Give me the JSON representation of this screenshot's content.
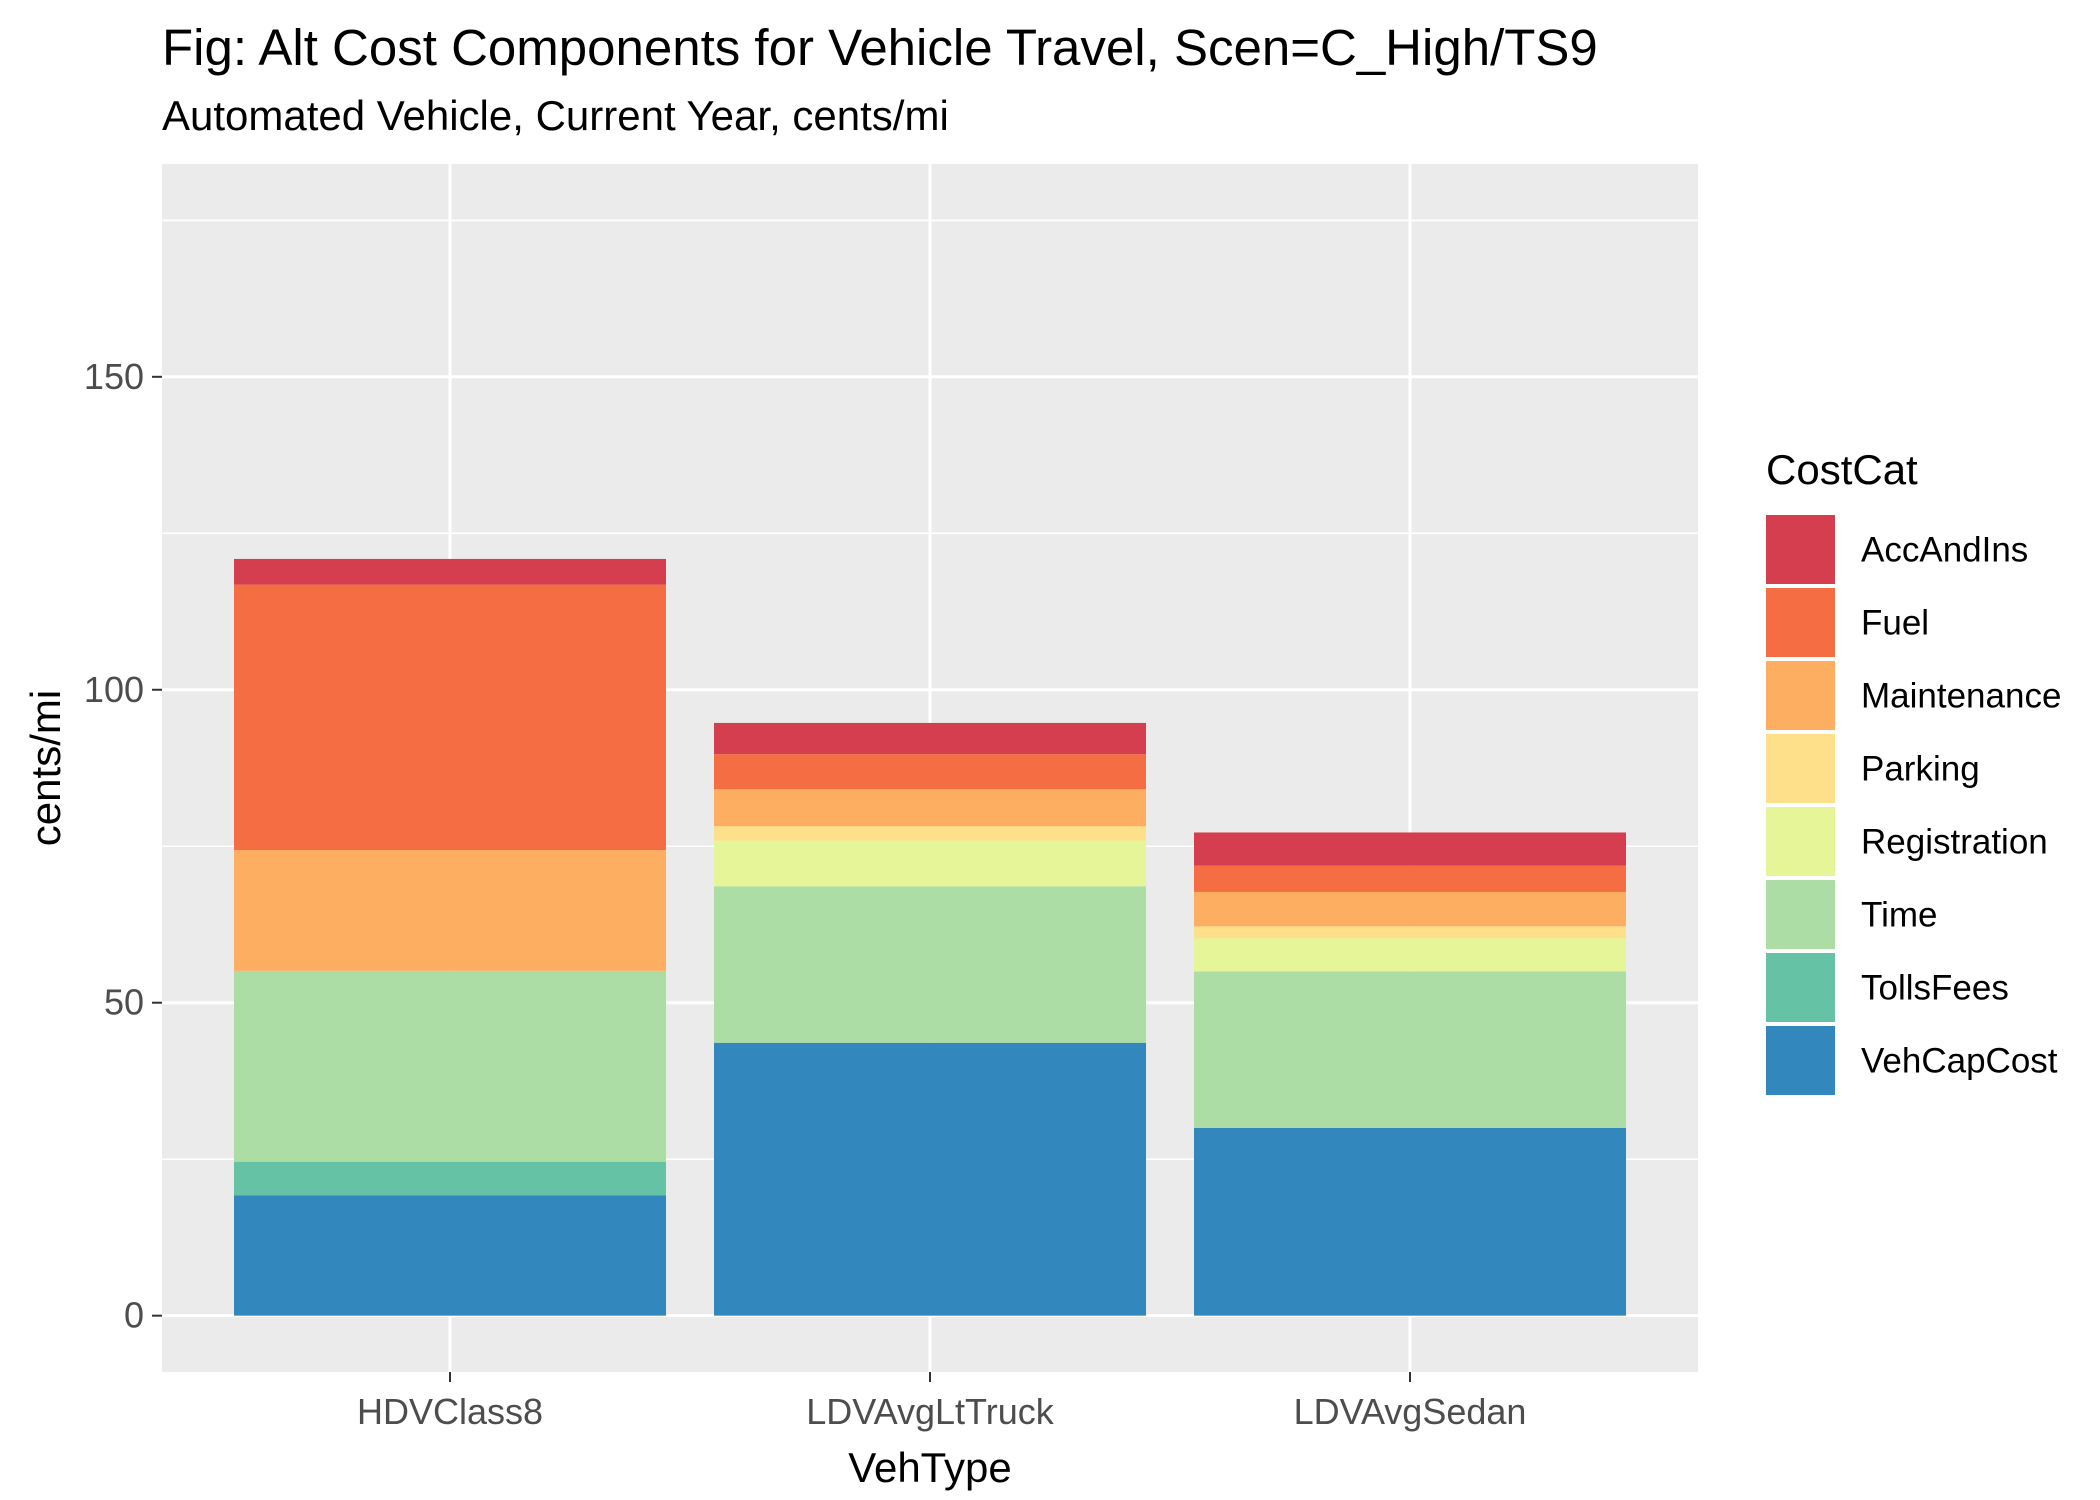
{
  "chart_data": {
    "type": "bar",
    "stacked": true,
    "title": "Fig: Alt Cost Components for Vehicle Travel, Scen=C_High/TS9",
    "subtitle": "Automated Vehicle, Current Year, cents/mi",
    "xlabel": "VehType",
    "ylabel": "cents/mi",
    "ylim": [
      -9,
      184
    ],
    "yticks": [
      0,
      50,
      100,
      150
    ],
    "grid": true,
    "legend_title": "CostCat",
    "legend_position": "right",
    "categories": [
      "HDVClass8",
      "LDVAvgLtTruck",
      "LDVAvgSedan"
    ],
    "series": [
      {
        "name": "VehCapCost",
        "color": "#3288BD",
        "values": [
          19.2,
          43.6,
          30.0
        ]
      },
      {
        "name": "TollsFees",
        "color": "#66C2A5",
        "values": [
          5.4,
          0,
          0
        ]
      },
      {
        "name": "Time",
        "color": "#ABDDA4",
        "values": [
          30.5,
          25.0,
          25.0
        ]
      },
      {
        "name": "Registration",
        "color": "#E6F598",
        "values": [
          0,
          7.3,
          5.3
        ]
      },
      {
        "name": "Parking",
        "color": "#FEE08B",
        "values": [
          0,
          2.3,
          1.9
        ]
      },
      {
        "name": "Maintenance",
        "color": "#FDAE61",
        "values": [
          19.3,
          5.9,
          5.5
        ]
      },
      {
        "name": "Fuel",
        "color": "#F46D43",
        "values": [
          42.4,
          5.6,
          4.2
        ]
      },
      {
        "name": "AccAndIns",
        "color": "#D53E4F",
        "values": [
          4.1,
          5.0,
          5.3
        ]
      }
    ],
    "legend_order": [
      "AccAndIns",
      "Fuel",
      "Maintenance",
      "Parking",
      "Registration",
      "Time",
      "TollsFees",
      "VehCapCost"
    ]
  }
}
